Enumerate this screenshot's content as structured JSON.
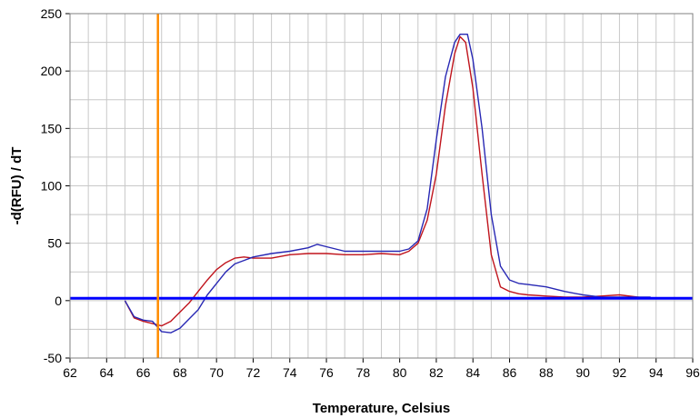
{
  "chart_data": {
    "type": "line",
    "title": "",
    "xlabel": "Temperature, Celsius",
    "ylabel": "-d(RFU) / dT",
    "xlim": [
      62,
      96
    ],
    "ylim": [
      -50,
      250
    ],
    "x_ticks": [
      62,
      64,
      66,
      68,
      70,
      72,
      74,
      76,
      78,
      80,
      82,
      84,
      86,
      88,
      90,
      92,
      94,
      96
    ],
    "y_ticks": [
      -50,
      0,
      50,
      100,
      150,
      200,
      250
    ],
    "x_minor_step": 1,
    "y_minor_step": 25,
    "grid": true,
    "legend": "none",
    "threshold": {
      "y": 2,
      "color": "#0000ff"
    },
    "marker": {
      "x": 66.8,
      "color": "#ff8c00"
    },
    "series": [
      {
        "color": "#c0141c",
        "x": [
          65.0,
          65.5,
          66.0,
          66.5,
          67.0,
          67.5,
          68.0,
          68.5,
          69.0,
          69.5,
          70.0,
          70.5,
          71.0,
          71.5,
          72.0,
          73.0,
          74.0,
          75.0,
          76.0,
          77.0,
          78.0,
          79.0,
          80.0,
          80.5,
          81.0,
          81.5,
          82.0,
          82.5,
          83.0,
          83.3,
          83.6,
          84.0,
          84.5,
          85.0,
          85.5,
          86.0,
          86.5,
          87.0,
          88.0,
          89.0,
          90.0,
          91.0,
          92.0,
          93.0,
          93.5
        ],
        "y": [
          0,
          -15,
          -18,
          -20,
          -22,
          -18,
          -10,
          -2,
          8,
          18,
          27,
          33,
          37,
          38,
          37,
          37,
          40,
          41,
          41,
          40,
          40,
          41,
          40,
          43,
          50,
          70,
          110,
          170,
          215,
          230,
          225,
          185,
          110,
          40,
          12,
          8,
          6,
          5,
          4,
          3,
          3,
          4,
          5,
          3,
          2
        ]
      },
      {
        "color": "#2828b4",
        "x": [
          65.0,
          65.5,
          66.0,
          66.5,
          67.0,
          67.5,
          68.0,
          68.5,
          69.0,
          69.5,
          70.0,
          70.5,
          71.0,
          71.5,
          72.0,
          73.0,
          74.0,
          75.0,
          75.5,
          76.0,
          77.0,
          78.0,
          79.0,
          80.0,
          80.5,
          81.0,
          81.5,
          82.0,
          82.5,
          83.0,
          83.3,
          83.7,
          84.0,
          84.5,
          85.0,
          85.5,
          86.0,
          86.5,
          87.0,
          88.0,
          89.0,
          90.0,
          91.0,
          92.0,
          93.0,
          93.7
        ],
        "y": [
          0,
          -14,
          -17,
          -18,
          -27,
          -28,
          -24,
          -16,
          -8,
          5,
          15,
          25,
          32,
          35,
          38,
          41,
          43,
          46,
          49,
          47,
          43,
          43,
          43,
          43,
          45,
          52,
          80,
          140,
          195,
          225,
          232,
          232,
          210,
          150,
          75,
          30,
          18,
          15,
          14,
          12,
          8,
          5,
          3,
          3,
          3,
          3
        ]
      }
    ]
  }
}
